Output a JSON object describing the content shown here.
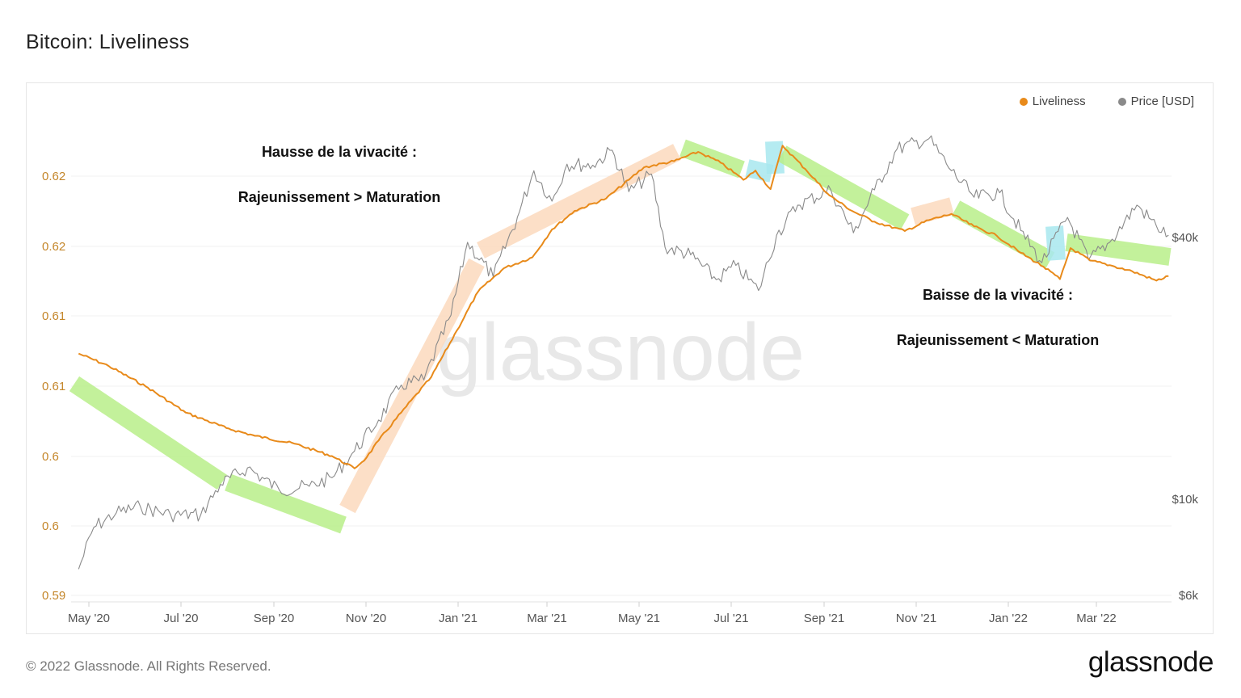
{
  "title": "Bitcoin: Liveliness",
  "footer": "© 2022 Glassnode. All Rights Reserved.",
  "brand": "glassnode",
  "watermark": "glassnode",
  "colors": {
    "liveliness": "#E88A1A",
    "price": "#8a8a8a",
    "left_axis_text": "#c4862a",
    "green_band": "#b8ee8a",
    "orange_band": "#fbd9bd",
    "cyan_band": "#a8e8ee"
  },
  "legend": [
    {
      "label": "Liveliness",
      "color": "#E88A1A",
      "icon": "circle-icon"
    },
    {
      "label": "Price [USD]",
      "color": "#8a8a8a",
      "icon": "circle-icon"
    }
  ],
  "annotations": {
    "up_title": "Hausse de la vivacité :",
    "up_text": "Rajeunissement > Maturation",
    "down_title": "Baisse de la vivacité :",
    "down_text": "Rajeunissement < Maturation"
  },
  "chart_data": {
    "type": "line",
    "x_ticks": [
      "May '20",
      "Jul '20",
      "Sep '20",
      "Nov '20",
      "Jan '21",
      "Mar '21",
      "May '21",
      "Jul '21",
      "Sep '21",
      "Nov '21",
      "Jan '22",
      "Mar '22"
    ],
    "x_range": [
      "2020-04-20",
      "2022-04-20"
    ],
    "y_left_ticks": [
      "0.59",
      "0.6",
      "0.6",
      "0.61",
      "0.61",
      "0.62",
      "0.62"
    ],
    "y_left_range": [
      0.59,
      0.6215
    ],
    "y_right_ticks": [
      "$6k",
      "$10k",
      "$40k"
    ],
    "y_right_scale": "log",
    "grid": true,
    "legend_position": "top-right",
    "series": [
      {
        "name": "Liveliness",
        "axis": "left",
        "points": [
          [
            "2020-04-25",
            0.606
          ],
          [
            "2020-05-15",
            0.6052
          ],
          [
            "2020-06-10",
            0.6038
          ],
          [
            "2020-07-05",
            0.6022
          ],
          [
            "2020-08-01",
            0.6012
          ],
          [
            "2020-08-20",
            0.6007
          ],
          [
            "2020-09-15",
            0.6002
          ],
          [
            "2020-10-10",
            0.5994
          ],
          [
            "2020-10-25",
            0.5986
          ],
          [
            "2020-11-02",
            0.5993
          ],
          [
            "2020-11-10",
            0.6004
          ],
          [
            "2020-11-25",
            0.6022
          ],
          [
            "2020-12-15",
            0.6045
          ],
          [
            "2021-01-01",
            0.6075
          ],
          [
            "2021-01-15",
            0.61
          ],
          [
            "2021-02-01",
            0.6115
          ],
          [
            "2021-02-20",
            0.6122
          ],
          [
            "2021-03-05",
            0.614
          ],
          [
            "2021-03-20",
            0.6152
          ],
          [
            "2021-04-10",
            0.616
          ],
          [
            "2021-04-25",
            0.6172
          ],
          [
            "2021-05-05",
            0.618
          ],
          [
            "2021-05-25",
            0.6184
          ],
          [
            "2021-06-10",
            0.619
          ],
          [
            "2021-06-25",
            0.6183
          ],
          [
            "2021-07-10",
            0.6172
          ],
          [
            "2021-07-18",
            0.6178
          ],
          [
            "2021-07-28",
            0.6166
          ],
          [
            "2021-08-05",
            0.6194
          ],
          [
            "2021-08-20",
            0.6179
          ],
          [
            "2021-09-05",
            0.6162
          ],
          [
            "2021-09-20",
            0.6152
          ],
          [
            "2021-10-05",
            0.6145
          ],
          [
            "2021-10-25",
            0.6139
          ],
          [
            "2021-11-10",
            0.6146
          ],
          [
            "2021-11-25",
            0.615
          ],
          [
            "2021-12-10",
            0.6142
          ],
          [
            "2021-12-25",
            0.6136
          ],
          [
            "2022-01-10",
            0.6125
          ],
          [
            "2022-01-25",
            0.6116
          ],
          [
            "2022-02-05",
            0.6108
          ],
          [
            "2022-02-12",
            0.6128
          ],
          [
            "2022-02-25",
            0.612
          ],
          [
            "2022-03-10",
            0.6117
          ],
          [
            "2022-03-25",
            0.6113
          ],
          [
            "2022-04-10",
            0.6107
          ],
          [
            "2022-04-18",
            0.611
          ]
        ]
      },
      {
        "name": "Price [USD]",
        "axis": "right",
        "points": [
          [
            "2020-04-25",
            6900
          ],
          [
            "2020-05-05",
            8600
          ],
          [
            "2020-05-20",
            9300
          ],
          [
            "2020-06-05",
            9600
          ],
          [
            "2020-06-25",
            9200
          ],
          [
            "2020-07-15",
            9200
          ],
          [
            "2020-07-28",
            10800
          ],
          [
            "2020-08-15",
            11800
          ],
          [
            "2020-09-05",
            10500
          ],
          [
            "2020-09-25",
            10700
          ],
          [
            "2020-10-10",
            11200
          ],
          [
            "2020-10-25",
            12900
          ],
          [
            "2020-11-10",
            15200
          ],
          [
            "2020-11-25",
            18300
          ],
          [
            "2020-12-10",
            18800
          ],
          [
            "2020-12-28",
            26500
          ],
          [
            "2021-01-08",
            39000
          ],
          [
            "2021-01-25",
            32500
          ],
          [
            "2021-02-10",
            44500
          ],
          [
            "2021-02-21",
            57000
          ],
          [
            "2021-03-05",
            48500
          ],
          [
            "2021-03-15",
            59000
          ],
          [
            "2021-04-01",
            58700
          ],
          [
            "2021-04-14",
            63500
          ],
          [
            "2021-04-25",
            51000
          ],
          [
            "2021-05-10",
            56000
          ],
          [
            "2021-05-19",
            38000
          ],
          [
            "2021-06-05",
            36500
          ],
          [
            "2021-06-22",
            32000
          ],
          [
            "2021-07-05",
            34500
          ],
          [
            "2021-07-20",
            30200
          ],
          [
            "2021-08-01",
            40500
          ],
          [
            "2021-08-15",
            47500
          ],
          [
            "2021-09-06",
            51500
          ],
          [
            "2021-09-21",
            41000
          ],
          [
            "2021-10-05",
            51500
          ],
          [
            "2021-10-20",
            64000
          ],
          [
            "2021-11-10",
            67500
          ],
          [
            "2021-11-25",
            57000
          ],
          [
            "2021-12-10",
            49500
          ],
          [
            "2021-12-27",
            50700
          ],
          [
            "2022-01-10",
            41500
          ],
          [
            "2022-01-24",
            35000
          ],
          [
            "2022-02-10",
            44500
          ],
          [
            "2022-02-24",
            35500
          ],
          [
            "2022-03-10",
            39000
          ],
          [
            "2022-03-28",
            47500
          ],
          [
            "2022-04-10",
            42500
          ],
          [
            "2022-04-18",
            40500
          ]
        ]
      }
    ]
  }
}
